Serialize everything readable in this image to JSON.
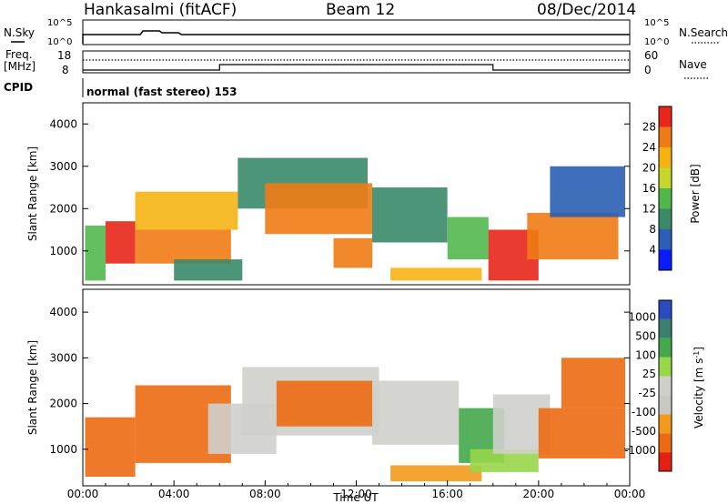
{
  "header": {
    "station": "Hankasalmi (fitACF)",
    "beam": "Beam 12",
    "date": "08/Dec/2014"
  },
  "colors": {
    "power_scale": [
      "#0a1bff",
      "#2a5fb3",
      "#3a8a6a",
      "#52b84e",
      "#c6d62a",
      "#f5b313",
      "#f07b14",
      "#e8261b"
    ],
    "velocity_scale": [
      "#2a4bbf",
      "#3a7f6c",
      "#45a84a",
      "#98d64a",
      "#cfcfcb",
      "#c9c9c4",
      "#f39a1d",
      "#ec6a12",
      "#e61f16"
    ]
  },
  "chart_data": [
    {
      "type": "line",
      "panel": "nsky-nsearch",
      "labels": {
        "left": "N.Sky",
        "right": "N.Search"
      },
      "left_ticks": [
        "10^5",
        "10^0"
      ],
      "right_ticks": [
        "10^5",
        "10^0"
      ],
      "left_scale": "log"
    },
    {
      "type": "line",
      "panel": "frequency-nave",
      "labels": {
        "left_line1": "Freq.",
        "left_line2": "[MHz]",
        "right": "Nave"
      },
      "left_ticks": [
        "18",
        "8"
      ],
      "right_ticks": [
        "60",
        "0"
      ],
      "frequency_steps": [
        {
          "from_h": 0,
          "to_h": 6,
          "level": "low"
        },
        {
          "from_h": 6,
          "to_h": 18,
          "level": "high"
        },
        {
          "from_h": 18,
          "to_h": 24,
          "level": "low"
        }
      ]
    },
    {
      "type": "table",
      "panel": "cpid",
      "label": "CPID",
      "value": "normal (fast stereo) 153"
    },
    {
      "type": "heatmap",
      "panel": "power",
      "ylabel": "Slant Range [km]",
      "xlim": [
        0,
        24
      ],
      "ylim": [
        200,
        4500
      ],
      "y_ticks": [
        "1000",
        "2000",
        "3000",
        "4000"
      ],
      "colorbar": {
        "label": "Power [dB]",
        "ticks": [
          "4",
          "8",
          "12",
          "16",
          "20",
          "24",
          "28"
        ],
        "range": [
          0,
          32
        ]
      },
      "echo_regions": [
        {
          "t0": 0.1,
          "t1": 1.0,
          "r0": 300,
          "r1": 1600,
          "value": 14
        },
        {
          "t0": 1.0,
          "t1": 2.3,
          "r0": 700,
          "r1": 1700,
          "value": 28
        },
        {
          "t0": 2.3,
          "t1": 6.5,
          "r0": 700,
          "r1": 1500,
          "value": 26
        },
        {
          "t0": 2.3,
          "t1": 6.8,
          "r0": 1500,
          "r1": 2400,
          "value": 20
        },
        {
          "t0": 4.0,
          "t1": 7.0,
          "r0": 300,
          "r1": 800,
          "value": 10
        },
        {
          "t0": 6.8,
          "t1": 12.5,
          "r0": 2000,
          "r1": 3200,
          "value": 8
        },
        {
          "t0": 8.0,
          "t1": 12.7,
          "r0": 1400,
          "r1": 2600,
          "value": 24
        },
        {
          "t0": 11.0,
          "t1": 12.7,
          "r0": 600,
          "r1": 1300,
          "value": 26
        },
        {
          "t0": 12.7,
          "t1": 16.0,
          "r0": 1200,
          "r1": 2500,
          "value": 8
        },
        {
          "t0": 13.5,
          "t1": 17.5,
          "r0": 300,
          "r1": 600,
          "value": 22
        },
        {
          "t0": 16.0,
          "t1": 17.8,
          "r0": 800,
          "r1": 1800,
          "value": 14
        },
        {
          "t0": 17.8,
          "t1": 20.0,
          "r0": 300,
          "r1": 1500,
          "value": 28
        },
        {
          "t0": 19.5,
          "t1": 23.5,
          "r0": 800,
          "r1": 1900,
          "value": 26
        },
        {
          "t0": 20.5,
          "t1": 23.8,
          "r0": 1800,
          "r1": 3000,
          "value": 6
        }
      ]
    },
    {
      "type": "heatmap",
      "panel": "velocity",
      "ylabel": "Slant Range [km]",
      "xlabel": "Time UT",
      "xlim": [
        0,
        24
      ],
      "ylim": [
        200,
        4500
      ],
      "x_ticks": [
        "00:00",
        "04:00",
        "08:00",
        "12:00",
        "16:00",
        "20:00",
        "00:00"
      ],
      "y_ticks": [
        "1000",
        "2000",
        "3000",
        "4000"
      ],
      "colorbar": {
        "label": "Velocity [m s",
        "label_sup": "-1",
        "label_end": "]",
        "ticks": [
          "1000",
          "500",
          "100",
          "25",
          "-25",
          "-100",
          "-500",
          "-1000"
        ]
      },
      "echo_regions": [
        {
          "t0": 0.1,
          "t1": 2.3,
          "r0": 400,
          "r1": 1700,
          "value": -120
        },
        {
          "t0": 2.3,
          "t1": 6.5,
          "r0": 700,
          "r1": 2400,
          "value": -300
        },
        {
          "t0": 5.5,
          "t1": 8.5,
          "r0": 900,
          "r1": 2000,
          "value": 0
        },
        {
          "t0": 7.0,
          "t1": 13.0,
          "r0": 1300,
          "r1": 2800,
          "value": 0
        },
        {
          "t0": 8.5,
          "t1": 12.7,
          "r0": 1500,
          "r1": 2500,
          "value": -250
        },
        {
          "t0": 12.7,
          "t1": 16.5,
          "r0": 1100,
          "r1": 2500,
          "value": 0
        },
        {
          "t0": 13.5,
          "t1": 17.5,
          "r0": 300,
          "r1": 650,
          "value": -60
        },
        {
          "t0": 16.5,
          "t1": 18.5,
          "r0": 700,
          "r1": 1900,
          "value": 250
        },
        {
          "t0": 17.0,
          "t1": 20.0,
          "r0": 500,
          "r1": 1000,
          "value": 80
        },
        {
          "t0": 18.0,
          "t1": 20.5,
          "r0": 900,
          "r1": 2200,
          "value": 0
        },
        {
          "t0": 20.0,
          "t1": 23.8,
          "r0": 800,
          "r1": 1900,
          "value": -220
        },
        {
          "t0": 21.0,
          "t1": 23.8,
          "r0": 1900,
          "r1": 3000,
          "value": -200
        }
      ]
    }
  ]
}
